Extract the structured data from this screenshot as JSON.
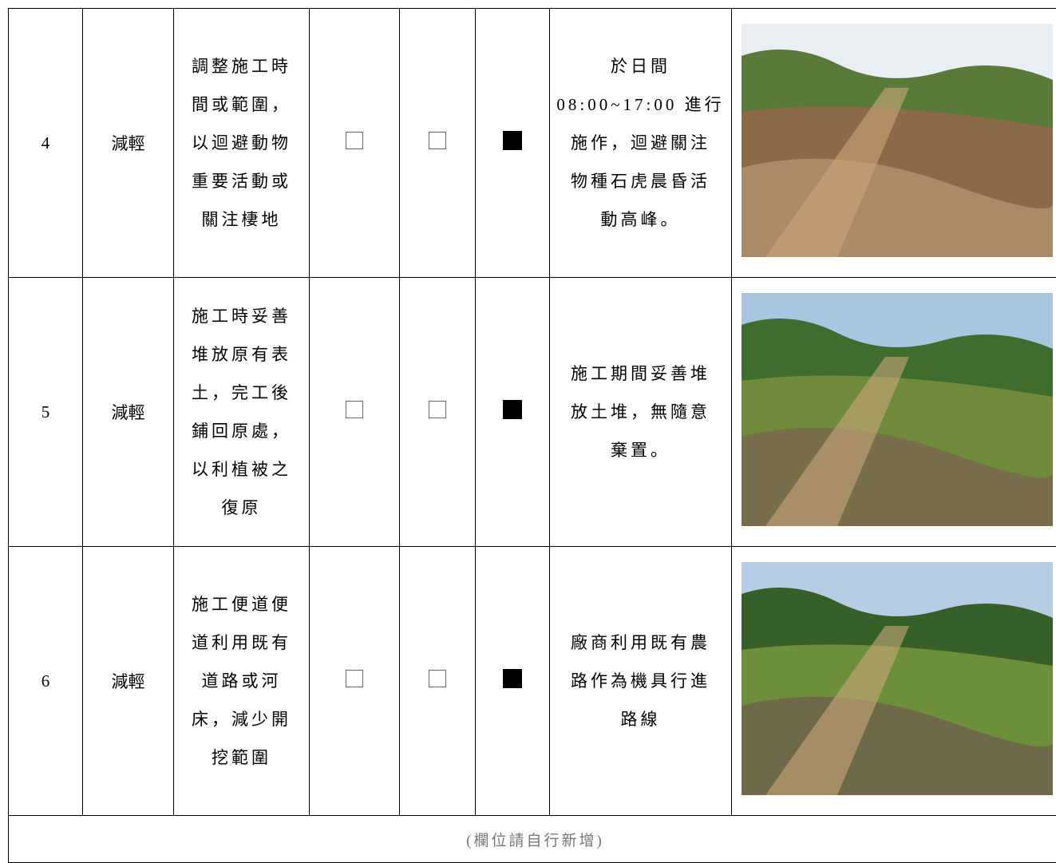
{
  "table": {
    "rows": [
      {
        "no": "4",
        "type": "減輕",
        "measure": [
          "調整施工時",
          "間或範圍，",
          "以迴避動物",
          "重要活動或",
          "關注棲地"
        ],
        "checks": [
          false,
          false,
          true
        ],
        "status": [
          "於日間",
          "08:00~17:00 進行",
          "施作，迴避關注",
          "物種石虎晨昏活",
          "動高峰。"
        ]
      },
      {
        "no": "5",
        "type": "減輕",
        "measure": [
          "施工時妥善",
          "堆放原有表",
          "土，完工後",
          "鋪回原處，",
          "以利植被之",
          "復原"
        ],
        "checks": [
          false,
          false,
          true
        ],
        "status": [
          "施工期間妥善堆",
          "放土堆，無隨意",
          "棄置。"
        ]
      },
      {
        "no": "6",
        "type": "減輕",
        "measure": [
          "施工便道便",
          "道利用既有",
          "道路或河",
          "床，減少開",
          "挖範圍"
        ],
        "checks": [
          false,
          false,
          true
        ],
        "status": [
          "廠商利用既有農",
          "路作為機具行進",
          "路線"
        ]
      }
    ],
    "footer": "(欄位請自行新增)"
  }
}
